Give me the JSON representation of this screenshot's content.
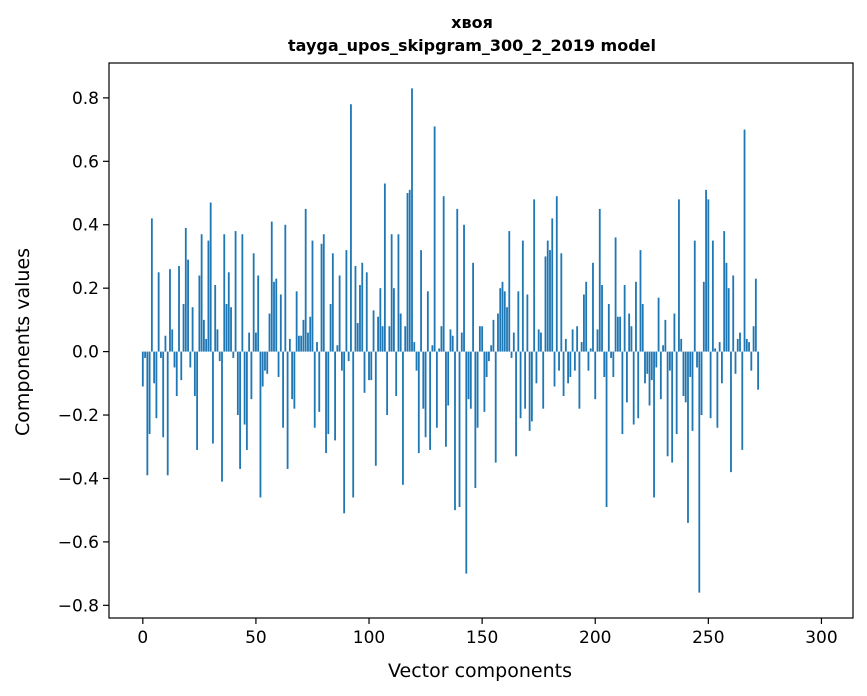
{
  "chart_data": {
    "type": "bar",
    "title": "хвоя",
    "subtitle": "tayga_upos_skipgram_300_2_2019 model",
    "xlabel": "Vector components",
    "ylabel": "Components values",
    "xlim": [
      -14.95,
      313.95
    ],
    "ylim": [
      -0.84,
      0.91
    ],
    "xticks": [
      0,
      50,
      100,
      150,
      200,
      250,
      300
    ],
    "yticks": [
      -0.8,
      -0.6,
      -0.4,
      -0.2,
      0.0,
      0.2,
      0.4,
      0.6,
      0.8
    ],
    "ytick_labels": [
      "−0.8",
      "−0.6",
      "−0.4",
      "−0.2",
      "0.0",
      "0.2",
      "0.4",
      "0.6",
      "0.8"
    ],
    "bar_color": "#1f77b4",
    "values": [
      -0.11,
      -0.02,
      -0.39,
      -0.26,
      0.42,
      -0.1,
      -0.21,
      0.25,
      -0.02,
      -0.27,
      0.05,
      -0.39,
      0.26,
      0.07,
      -0.05,
      -0.14,
      0.27,
      -0.09,
      0.15,
      0.39,
      0.29,
      -0.05,
      0.14,
      -0.14,
      -0.31,
      0.24,
      0.37,
      0.1,
      0.04,
      0.35,
      0.47,
      -0.29,
      0.21,
      0.07,
      -0.03,
      -0.41,
      0.37,
      0.15,
      0.25,
      0.14,
      -0.02,
      0.38,
      -0.2,
      -0.37,
      0.37,
      -0.23,
      -0.31,
      0.06,
      -0.15,
      0.31,
      0.06,
      0.24,
      -0.46,
      -0.11,
      -0.06,
      -0.07,
      0.12,
      0.41,
      0.22,
      0.23,
      -0.08,
      0.18,
      -0.24,
      0.4,
      -0.37,
      0.04,
      -0.15,
      -0.18,
      0.19,
      0.05,
      0.05,
      0.1,
      0.45,
      0.06,
      0.11,
      0.35,
      -0.24,
      0.03,
      -0.19,
      0.34,
      0.37,
      -0.32,
      -0.26,
      0.15,
      0.31,
      -0.28,
      0.02,
      0.24,
      -0.06,
      -0.51,
      0.32,
      -0.03,
      0.78,
      -0.46,
      0.27,
      0.09,
      0.21,
      0.28,
      -0.13,
      0.25,
      -0.09,
      -0.09,
      0.13,
      -0.36,
      0.11,
      0.2,
      0.08,
      0.53,
      -0.2,
      0.08,
      0.37,
      0.2,
      -0.14,
      0.37,
      0.12,
      -0.42,
      0.08,
      0.5,
      0.51,
      0.83,
      0.03,
      -0.06,
      -0.32,
      0.32,
      -0.18,
      -0.27,
      0.19,
      -0.31,
      0.02,
      0.71,
      -0.24,
      0.01,
      0.08,
      0.49,
      -0.3,
      -0.17,
      0.07,
      0.05,
      -0.5,
      0.45,
      -0.49,
      0.06,
      0.4,
      -0.7,
      -0.15,
      -0.18,
      0.28,
      -0.43,
      -0.24,
      0.08,
      0.08,
      -0.19,
      -0.08,
      -0.03,
      0.02,
      0.1,
      -0.35,
      0.12,
      0.2,
      0.22,
      0.19,
      0.14,
      0.38,
      -0.02,
      0.06,
      -0.33,
      0.19,
      -0.21,
      0.35,
      -0.18,
      0.18,
      -0.25,
      -0.22,
      0.48,
      -0.1,
      0.07,
      0.06,
      -0.18,
      0.3,
      0.35,
      0.32,
      0.42,
      -0.11,
      0.49,
      -0.06,
      0.31,
      -0.14,
      0.04,
      -0.1,
      -0.08,
      0.07,
      -0.06,
      0.08,
      -0.18,
      0.03,
      0.18,
      0.22,
      -0.06,
      0.01,
      0.28,
      -0.15,
      0.07,
      0.45,
      0.21,
      -0.08,
      -0.49,
      0.15,
      -0.02,
      -0.08,
      0.36,
      0.11,
      0.11,
      -0.26,
      0.21,
      -0.16,
      0.12,
      0.08,
      -0.23,
      0.22,
      -0.21,
      0.32,
      0.15,
      -0.1,
      -0.07,
      -0.17,
      -0.09,
      -0.46,
      -0.05,
      0.17,
      -0.15,
      0.02,
      0.1,
      -0.33,
      -0.06,
      -0.35,
      0.12,
      -0.26,
      0.48,
      0.04,
      -0.14,
      -0.16,
      -0.54,
      -0.08,
      -0.25,
      0.35,
      -0.05,
      -0.76,
      -0.2,
      0.22,
      0.51,
      0.48,
      -0.21,
      0.35,
      0.01,
      -0.24,
      0.03,
      -0.1,
      0.38,
      0.28,
      0.2,
      -0.38,
      0.24,
      -0.07,
      0.04,
      0.06,
      -0.31,
      0.7,
      0.04,
      0.03,
      -0.06,
      0.08,
      0.23,
      -0.12
    ],
    "bar_x_start": 0,
    "grid": false,
    "legend": "none"
  }
}
